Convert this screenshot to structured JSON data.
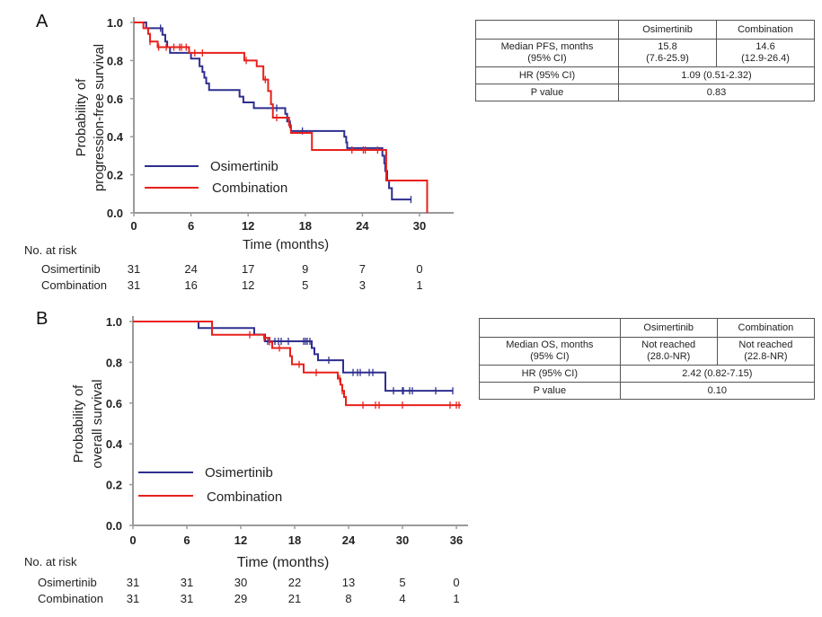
{
  "colors": {
    "osimertinib": "#2e2e8f",
    "combination": "#e8201c",
    "axis": "#9a9a9a",
    "text": "#222222"
  },
  "chart_data": [
    {
      "panel": "A",
      "type": "line",
      "subtype": "kaplan-meier-step",
      "ylabel": [
        "Probability of",
        "progression-free survival"
      ],
      "xlabel": "Time (months)",
      "xlim": [
        0,
        33.5
      ],
      "ylim": [
        0,
        1.0
      ],
      "xticks": [
        "0",
        "6",
        "12",
        "18",
        "24",
        "30"
      ],
      "xtick_values": [
        0,
        6,
        12,
        18,
        24,
        30
      ],
      "yticks": [
        "0.0",
        "0.2",
        "0.4",
        "0.6",
        "0.8",
        "1.0"
      ],
      "ytick_values": [
        0,
        0.2,
        0.4,
        0.6,
        0.8,
        1.0
      ],
      "grid": false,
      "legend": {
        "placement": "lower-left",
        "entries": [
          "Osimertinib",
          "Combination"
        ]
      },
      "series": [
        {
          "name": "Osimertinib",
          "color_key": "osimertinib",
          "steps": [
            [
              0,
              1.0
            ],
            [
              1.3,
              0.97
            ],
            [
              3.0,
              0.935
            ],
            [
              3.3,
              0.9
            ],
            [
              3.5,
              0.87
            ],
            [
              3.8,
              0.84
            ],
            [
              6.0,
              0.81
            ],
            [
              6.9,
              0.77
            ],
            [
              7.2,
              0.74
            ],
            [
              7.4,
              0.71
            ],
            [
              7.6,
              0.68
            ],
            [
              7.9,
              0.645
            ],
            [
              11.1,
              0.61
            ],
            [
              11.5,
              0.58
            ],
            [
              12.6,
              0.55
            ],
            [
              15.9,
              0.52
            ],
            [
              16.1,
              0.48
            ],
            [
              16.4,
              0.45
            ],
            [
              16.5,
              0.43
            ],
            [
              22.1,
              0.4
            ],
            [
              22.3,
              0.37
            ],
            [
              22.4,
              0.34
            ],
            [
              26.1,
              0.3
            ],
            [
              26.3,
              0.26
            ],
            [
              26.4,
              0.22
            ],
            [
              26.6,
              0.17
            ],
            [
              26.8,
              0.13
            ],
            [
              27.1,
              0.07
            ]
          ],
          "end": 29.1,
          "censored": [
            2.8,
            15.0,
            17.7,
            29.1
          ]
        },
        {
          "name": "Combination",
          "color_key": "combination",
          "steps": [
            [
              0,
              1.0
            ],
            [
              1.0,
              0.97
            ],
            [
              1.5,
              0.94
            ],
            [
              1.7,
              0.9
            ],
            [
              2.5,
              0.87
            ],
            [
              5.8,
              0.84
            ],
            [
              11.6,
              0.8
            ],
            [
              12.9,
              0.77
            ],
            [
              13.6,
              0.7
            ],
            [
              14.1,
              0.64
            ],
            [
              14.4,
              0.57
            ],
            [
              14.6,
              0.5
            ],
            [
              16.3,
              0.46
            ],
            [
              16.5,
              0.42
            ],
            [
              18.7,
              0.33
            ],
            [
              26.5,
              0.17
            ],
            [
              30.8,
              0.0
            ]
          ],
          "end": 30.8,
          "censored": [
            1.7,
            2.6,
            3.4,
            4.2,
            4.8,
            5.0,
            5.5,
            6.4,
            7.2,
            11.8,
            13.8,
            15.0,
            22.9,
            24.1,
            24.3,
            25.6
          ]
        }
      ],
      "risk_table": {
        "title": "No. at risk",
        "rows": [
          {
            "name": "Osimertinib",
            "values": [
              "31",
              "24",
              "17",
              "9",
              "7",
              "0"
            ]
          },
          {
            "name": "Combination",
            "values": [
              "31",
              "16",
              "12",
              "5",
              "3",
              "1"
            ]
          }
        ]
      }
    },
    {
      "panel": "B",
      "type": "line",
      "subtype": "kaplan-meier-step",
      "ylabel": [
        "Probability of",
        "overall  survival"
      ],
      "xlabel": "Time (months)",
      "xlim": [
        0,
        37.3
      ],
      "ylim": [
        0,
        1.0
      ],
      "xticks": [
        "0",
        "6",
        "12",
        "18",
        "24",
        "30",
        "36"
      ],
      "xtick_values": [
        0,
        6,
        12,
        18,
        24,
        30,
        36
      ],
      "yticks": [
        "0.0",
        "0.2",
        "0.4",
        "0.6",
        "0.8",
        "1.0"
      ],
      "ytick_values": [
        0,
        0.2,
        0.4,
        0.6,
        0.8,
        1.0
      ],
      "grid": false,
      "legend": {
        "placement": "lower-left",
        "entries": [
          "Osimertinib",
          "Combination"
        ]
      },
      "series": [
        {
          "name": "Osimertinib",
          "color_key": "osimertinib",
          "steps": [
            [
              0,
              1.0
            ],
            [
              7.3,
              0.968
            ],
            [
              13.5,
              0.936
            ],
            [
              14.7,
              0.903
            ],
            [
              19.9,
              0.87
            ],
            [
              20.2,
              0.84
            ],
            [
              20.6,
              0.81
            ],
            [
              23.4,
              0.75
            ],
            [
              28.1,
              0.66
            ]
          ],
          "end": 35.6,
          "censored": [
            15.0,
            15.8,
            16.2,
            16.5,
            17.3,
            19.0,
            19.2,
            19.4,
            19.7,
            21.8,
            24.5,
            25.0,
            25.3,
            26.3,
            26.7,
            29.0,
            30.0,
            30.1,
            30.8,
            31.1,
            33.7,
            35.6
          ]
        },
        {
          "name": "Combination",
          "color_key": "combination",
          "steps": [
            [
              0,
              1.0
            ],
            [
              8.8,
              0.935
            ],
            [
              14.6,
              0.92
            ],
            [
              15.2,
              0.9
            ],
            [
              15.5,
              0.87
            ],
            [
              17.5,
              0.83
            ],
            [
              17.7,
              0.79
            ],
            [
              19.0,
              0.75
            ],
            [
              22.8,
              0.72
            ],
            [
              23.1,
              0.69
            ],
            [
              23.3,
              0.66
            ],
            [
              23.5,
              0.63
            ],
            [
              23.7,
              0.59
            ]
          ],
          "end": 36.5,
          "censored": [
            13.0,
            14.6,
            15.2,
            16.3,
            18.5,
            20.4,
            23.0,
            23.3,
            25.6,
            27.0,
            27.4,
            30.0,
            35.3,
            36.0,
            36.3
          ]
        }
      ],
      "risk_table": {
        "title": "No. at risk",
        "rows": [
          {
            "name": "Osimertinib",
            "values": [
              "31",
              "31",
              "30",
              "22",
              "13",
              "5",
              "0"
            ]
          },
          {
            "name": "Combination",
            "values": [
              "31",
              "31",
              "29",
              "21",
              "8",
              "4",
              "1"
            ]
          }
        ]
      }
    }
  ],
  "tables": {
    "pfs": {
      "header": [
        "",
        "Osimertinib",
        "Combination"
      ],
      "median_label": [
        "Median PFS, months",
        "(95% CI)"
      ],
      "median_osi": [
        "15.8",
        "(7.6-25.9)"
      ],
      "median_comb": [
        "14.6",
        "(12.9-26.4)"
      ],
      "hr_label": "HR (95% CI)",
      "hr_value": "1.09 (0.51-2.32)",
      "p_label": "P value",
      "p_value": "0.83"
    },
    "os": {
      "header": [
        "",
        "Osimertinib",
        "Combination"
      ],
      "median_label": [
        "Median OS, months",
        "(95% CI)"
      ],
      "median_osi": [
        "Not reached",
        "(28.0-NR)"
      ],
      "median_comb": [
        "Not reached",
        "(22.8-NR)"
      ],
      "hr_label": "HR (95% CI)",
      "hr_value": "2.42 (0.82-7.15)",
      "p_label": "P value",
      "p_value": "0.10"
    }
  }
}
